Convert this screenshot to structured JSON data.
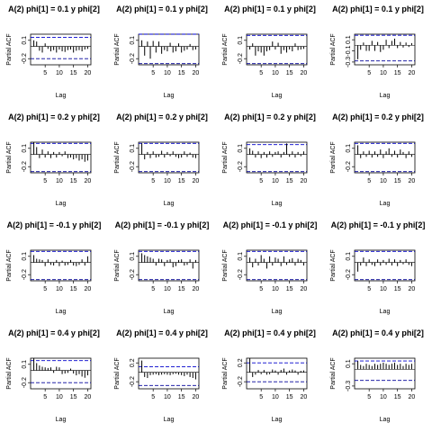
{
  "figure": {
    "rows": 4,
    "cols": 4
  },
  "colors": {
    "bar": "#000000",
    "ci_top": "#0000cc",
    "ci_bottom": "#000099",
    "frame": "#000000"
  },
  "chart_data": [
    {
      "type": "bar",
      "title": "A(2) phi[1] = 0.1 y  phi[2]",
      "xlabel": "Lag",
      "ylabel": "Partial ACF",
      "yticks": [
        0.1,
        -0.2
      ],
      "ylim": [
        -0.3,
        0.2
      ],
      "xticks": [
        5,
        10,
        15,
        20
      ],
      "ci": [
        0.15,
        -0.2
      ],
      "x": [
        1,
        2,
        3,
        4,
        5,
        6,
        7,
        8,
        9,
        10,
        11,
        12,
        13,
        14,
        15,
        16,
        17,
        18,
        19,
        20
      ],
      "values": [
        0.1,
        0.08,
        -0.07,
        -0.1,
        0.05,
        -0.04,
        -0.08,
        -0.06,
        -0.1,
        -0.05,
        -0.08,
        -0.09,
        -0.06,
        -0.05,
        -0.1,
        -0.07,
        -0.06,
        -0.08,
        -0.05,
        -0.04
      ]
    },
    {
      "type": "bar",
      "title": "A(2) phi[1] = 0.1 y  phi[2]",
      "xlabel": "Lag",
      "ylabel": "Partial ACF",
      "yticks": [
        0.1,
        -0.2
      ],
      "ylim": [
        -0.3,
        0.2
      ],
      "xticks": [
        5,
        10,
        15,
        20
      ],
      "ci": [
        0.2,
        -0.28
      ],
      "x": [
        1,
        2,
        3,
        4,
        5,
        6,
        7,
        8,
        9,
        10,
        11,
        12,
        13,
        14,
        15,
        16,
        17,
        18,
        19,
        20
      ],
      "values": [
        0.1,
        -0.15,
        0.08,
        -0.2,
        0.09,
        -0.1,
        0.08,
        -0.12,
        -0.06,
        -0.08,
        0.06,
        -0.1,
        -0.08,
        0.05,
        -0.1,
        -0.07,
        -0.05,
        0.04,
        -0.06,
        -0.05
      ]
    },
    {
      "type": "bar",
      "title": "A(2) phi[1] = 0.1 y  phi[2]",
      "xlabel": "Lag",
      "ylabel": "Partial ACF",
      "yticks": [
        0.1,
        -0.2
      ],
      "ylim": [
        -0.3,
        0.2
      ],
      "xticks": [
        5,
        10,
        15,
        20
      ],
      "ci": [
        0.18,
        -0.28
      ],
      "x": [
        1,
        2,
        3,
        4,
        5,
        6,
        7,
        8,
        9,
        10,
        11,
        12,
        13,
        14,
        15,
        16,
        17,
        18,
        19,
        20
      ],
      "values": [
        -0.05,
        0.05,
        -0.15,
        -0.08,
        -0.1,
        -0.15,
        -0.08,
        -0.06,
        0.08,
        -0.05,
        0.06,
        -0.12,
        -0.06,
        -0.1,
        -0.05,
        -0.08,
        0.05,
        -0.06,
        -0.05,
        -0.04
      ]
    },
    {
      "type": "bar",
      "title": "A(2) phi[1] = 0.1 y  phi[2]",
      "xlabel": "Lag",
      "ylabel": "Partial ACF",
      "yticks": [
        0.1,
        -0.1,
        -0.3
      ],
      "ylim": [
        -0.35,
        0.2
      ],
      "xticks": [
        5,
        10,
        15,
        20
      ],
      "ci": [
        0.18,
        -0.28
      ],
      "x": [
        1,
        2,
        3,
        4,
        5,
        6,
        7,
        8,
        9,
        10,
        11,
        12,
        13,
        14,
        15,
        16,
        17,
        18,
        19,
        20
      ],
      "values": [
        -0.25,
        -0.08,
        0.05,
        -0.1,
        -0.1,
        0.08,
        -0.1,
        0.06,
        -0.12,
        -0.08,
        0.1,
        -0.05,
        0.08,
        0.12,
        -0.05,
        0.06,
        -0.04,
        0.05,
        -0.03,
        0.04
      ]
    },
    {
      "type": "bar",
      "title": "A(2) phi[1] = 0.2 y  phi[2]",
      "xlabel": "Lag",
      "ylabel": "Partial ACF",
      "yticks": [
        0.1,
        -0.2
      ],
      "ylim": [
        -0.3,
        0.2
      ],
      "xticks": [
        5,
        10,
        15,
        20
      ],
      "ci": [
        0.18,
        -0.28
      ],
      "x": [
        1,
        2,
        3,
        4,
        5,
        6,
        7,
        8,
        9,
        10,
        11,
        12,
        13,
        14,
        15,
        16,
        17,
        18,
        19,
        20
      ],
      "values": [
        0.2,
        0.12,
        -0.06,
        0.08,
        -0.05,
        0.05,
        -0.06,
        0.04,
        -0.05,
        0.04,
        -0.03,
        0.05,
        -0.06,
        -0.05,
        -0.08,
        -0.06,
        -0.1,
        -0.08,
        -0.12,
        -0.1
      ]
    },
    {
      "type": "bar",
      "title": "A(2) phi[1] = 0.2 y  phi[2]",
      "xlabel": "Lag",
      "ylabel": "Partial ACF",
      "yticks": [
        0.1,
        -0.2
      ],
      "ylim": [
        -0.3,
        0.2
      ],
      "xticks": [
        5,
        10,
        15,
        20
      ],
      "ci": [
        0.18,
        -0.28
      ],
      "x": [
        1,
        2,
        3,
        4,
        5,
        6,
        7,
        8,
        9,
        10,
        11,
        12,
        13,
        14,
        15,
        16,
        17,
        18,
        19,
        20
      ],
      "values": [
        0.18,
        -0.08,
        0.04,
        -0.06,
        0.05,
        -0.05,
        -0.04,
        0.06,
        -0.05,
        0.04,
        -0.03,
        0.05,
        -0.04,
        -0.06,
        -0.05,
        0.05,
        -0.04,
        0.03,
        -0.05,
        -0.06
      ]
    },
    {
      "type": "bar",
      "title": "A(2) phi[1] = 0.2 y  phi[2]",
      "xlabel": "Lag",
      "ylabel": "Partial ACF",
      "yticks": [
        0.1,
        -0.2
      ],
      "ylim": [
        -0.3,
        0.2
      ],
      "xticks": [
        5,
        10,
        15,
        20
      ],
      "ci": [
        0.16,
        -0.28
      ],
      "x": [
        1,
        2,
        3,
        4,
        5,
        6,
        7,
        8,
        9,
        10,
        11,
        12,
        13,
        14,
        15,
        16,
        17,
        18,
        19,
        20
      ],
      "values": [
        0.1,
        0.06,
        -0.05,
        0.05,
        -0.06,
        0.04,
        -0.05,
        0.05,
        -0.04,
        0.04,
        0.05,
        -0.05,
        0.04,
        0.18,
        -0.04,
        0.05,
        -0.05,
        0.04,
        -0.03,
        0.05
      ]
    },
    {
      "type": "bar",
      "title": "A(2) phi[1] = 0.2 y  phi[2]",
      "xlabel": "Lag",
      "ylabel": "Partial ACF",
      "yticks": [
        0.1,
        -0.2
      ],
      "ylim": [
        -0.3,
        0.2
      ],
      "xticks": [
        5,
        10,
        15,
        20
      ],
      "ci": [
        0.18,
        -0.28
      ],
      "x": [
        1,
        2,
        3,
        4,
        5,
        6,
        7,
        8,
        9,
        10,
        11,
        12,
        13,
        14,
        15,
        16,
        17,
        18,
        19,
        20
      ],
      "values": [
        0.15,
        -0.06,
        0.05,
        -0.04,
        0.06,
        -0.05,
        0.05,
        -0.04,
        0.08,
        -0.06,
        0.05,
        0.1,
        -0.04,
        0.06,
        -0.05,
        0.08,
        0.04,
        -0.06,
        0.05,
        -0.04
      ]
    },
    {
      "type": "bar",
      "title": "A(2) phi[1] = -0.1 y  phi[2]",
      "xlabel": "Lag",
      "ylabel": "Partial ACF",
      "yticks": [
        0.1,
        -0.2
      ],
      "ylim": [
        -0.3,
        0.2
      ],
      "xticks": [
        5,
        10,
        15,
        20
      ],
      "ci": [
        0.18,
        -0.28
      ],
      "x": [
        1,
        2,
        3,
        4,
        5,
        6,
        7,
        8,
        9,
        10,
        11,
        12,
        13,
        14,
        15,
        16,
        17,
        18,
        19,
        20
      ],
      "values": [
        0.12,
        0.06,
        0.05,
        0.04,
        -0.06,
        0.05,
        -0.04,
        -0.05,
        0.04,
        -0.06,
        0.03,
        -0.05,
        -0.04,
        0.04,
        -0.05,
        -0.06,
        -0.04,
        0.05,
        -0.05,
        0.1
      ]
    },
    {
      "type": "bar",
      "title": "A(2) phi[1] = -0.1 y  phi[2]",
      "xlabel": "Lag",
      "ylabel": "Partial ACF",
      "yticks": [
        0.1,
        -0.2
      ],
      "ylim": [
        -0.3,
        0.2
      ],
      "xticks": [
        5,
        10,
        15,
        20
      ],
      "ci": [
        0.18,
        -0.28
      ],
      "x": [
        1,
        2,
        3,
        4,
        5,
        6,
        7,
        8,
        9,
        10,
        11,
        12,
        13,
        14,
        15,
        16,
        17,
        18,
        19,
        20
      ],
      "values": [
        0.15,
        0.12,
        0.1,
        0.08,
        0.06,
        -0.05,
        0.06,
        0.05,
        -0.06,
        0.04,
        0.05,
        -0.08,
        -0.06,
        0.04,
        0.05,
        -0.05,
        -0.04,
        0.05,
        -0.1,
        0.04
      ]
    },
    {
      "type": "bar",
      "title": "A(2) phi[1] = -0.1 y  phi[2]",
      "xlabel": "Lag",
      "ylabel": "Partial ACF",
      "yticks": [
        0.1,
        -0.2
      ],
      "ylim": [
        -0.3,
        0.2
      ],
      "xticks": [
        5,
        10,
        15,
        20
      ],
      "ci": [
        0.18,
        -0.28
      ],
      "x": [
        1,
        2,
        3,
        4,
        5,
        6,
        7,
        8,
        9,
        10,
        11,
        12,
        13,
        14,
        15,
        16,
        17,
        18,
        19,
        20
      ],
      "values": [
        0.08,
        -0.08,
        0.06,
        -0.05,
        0.12,
        0.06,
        -0.1,
        0.1,
        -0.05,
        0.08,
        0.06,
        -0.06,
        0.1,
        -0.04,
        0.05,
        0.07,
        -0.05,
        0.06,
        0.04,
        -0.05
      ]
    },
    {
      "type": "bar",
      "title": "A(2) phi[1] = -0.1 y  phi[2]",
      "xlabel": "Lag",
      "ylabel": "Partial ACF",
      "yticks": [
        0.1,
        -0.2
      ],
      "ylim": [
        -0.3,
        0.2
      ],
      "xticks": [
        5,
        10,
        15,
        20
      ],
      "ci": [
        0.18,
        -0.28
      ],
      "x": [
        1,
        2,
        3,
        4,
        5,
        6,
        7,
        8,
        9,
        10,
        11,
        12,
        13,
        14,
        15,
        16,
        17,
        18,
        19,
        20
      ],
      "values": [
        -0.15,
        -0.05,
        0.08,
        -0.06,
        0.05,
        -0.04,
        -0.06,
        0.05,
        -0.05,
        0.04,
        -0.04,
        0.06,
        -0.05,
        0.05,
        -0.06,
        0.04,
        -0.03,
        0.05,
        -0.04,
        -0.06
      ]
    },
    {
      "type": "bar",
      "title": "A(2) phi[1] = 0.4 y  phi[2]",
      "xlabel": "Lag",
      "ylabel": "Partial ACF",
      "yticks": [
        0.1,
        -0.2
      ],
      "ylim": [
        -0.3,
        0.2
      ],
      "xticks": [
        5,
        10,
        15,
        20
      ],
      "ci": [
        0.16,
        -0.2
      ],
      "x": [
        1,
        2,
        3,
        4,
        5,
        6,
        7,
        8,
        9,
        10,
        11,
        12,
        13,
        14,
        15,
        16,
        17,
        18,
        19,
        20
      ],
      "values": [
        0.2,
        0.12,
        0.08,
        0.06,
        0.05,
        0.04,
        0.05,
        -0.04,
        0.06,
        0.05,
        -0.06,
        -0.05,
        -0.04,
        0.03,
        -0.05,
        -0.08,
        -0.06,
        -0.1,
        -0.12,
        -0.08
      ]
    },
    {
      "type": "bar",
      "title": "A(2) phi[1] = 0.4 y  phi[2]",
      "xlabel": "Lag",
      "ylabel": "Partial ACF",
      "yticks": [
        0.2,
        -0.2
      ],
      "ylim": [
        -0.35,
        0.3
      ],
      "xticks": [
        5,
        10,
        15,
        20
      ],
      "ci": [
        0.12,
        -0.28
      ],
      "x": [
        1,
        2,
        3,
        4,
        5,
        6,
        7,
        8,
        9,
        10,
        11,
        12,
        13,
        14,
        15,
        16,
        17,
        18,
        19,
        20
      ],
      "values": [
        0.25,
        -0.1,
        -0.12,
        -0.06,
        -0.05,
        -0.04,
        -0.06,
        -0.05,
        -0.04,
        -0.05,
        -0.06,
        -0.04,
        -0.03,
        -0.05,
        -0.06,
        -0.08,
        -0.05,
        -0.1,
        -0.12,
        -0.15
      ]
    },
    {
      "type": "bar",
      "title": "A(2) phi[1] = 0.4 y  phi[2]",
      "xlabel": "Lag",
      "ylabel": "Partial ACF",
      "yticks": [
        0.2,
        -0.2
      ],
      "ylim": [
        -0.35,
        0.3
      ],
      "xticks": [
        5,
        10,
        15,
        20
      ],
      "ci": [
        0.2,
        -0.2
      ],
      "x": [
        1,
        2,
        3,
        4,
        5,
        6,
        7,
        8,
        9,
        10,
        11,
        12,
        13,
        14,
        15,
        16,
        17,
        18,
        19,
        20
      ],
      "values": [
        0.3,
        -0.1,
        -0.05,
        0.05,
        -0.04,
        0.05,
        -0.05,
        -0.04,
        0.06,
        0.04,
        -0.05,
        0.05,
        0.08,
        -0.05,
        0.04,
        0.06,
        0.04,
        -0.05,
        0.03,
        0.04
      ]
    },
    {
      "type": "bar",
      "title": "A(2) phi[1] = 0.4 y  phi[2]",
      "xlabel": "Lag",
      "ylabel": "Partial ACF",
      "yticks": [
        0.1,
        -0.3
      ],
      "ylim": [
        -0.35,
        0.2
      ],
      "xticks": [
        5,
        10,
        15,
        20
      ],
      "ci": [
        0.15,
        -0.2
      ],
      "x": [
        1,
        2,
        3,
        4,
        5,
        6,
        7,
        8,
        9,
        10,
        11,
        12,
        13,
        14,
        15,
        16,
        17,
        18,
        19,
        20
      ],
      "values": [
        0.15,
        0.08,
        0.06,
        0.1,
        0.08,
        0.06,
        0.1,
        0.08,
        0.1,
        0.12,
        0.1,
        0.08,
        0.1,
        0.12,
        0.08,
        0.1,
        0.06,
        0.1,
        0.08,
        0.1
      ]
    }
  ]
}
